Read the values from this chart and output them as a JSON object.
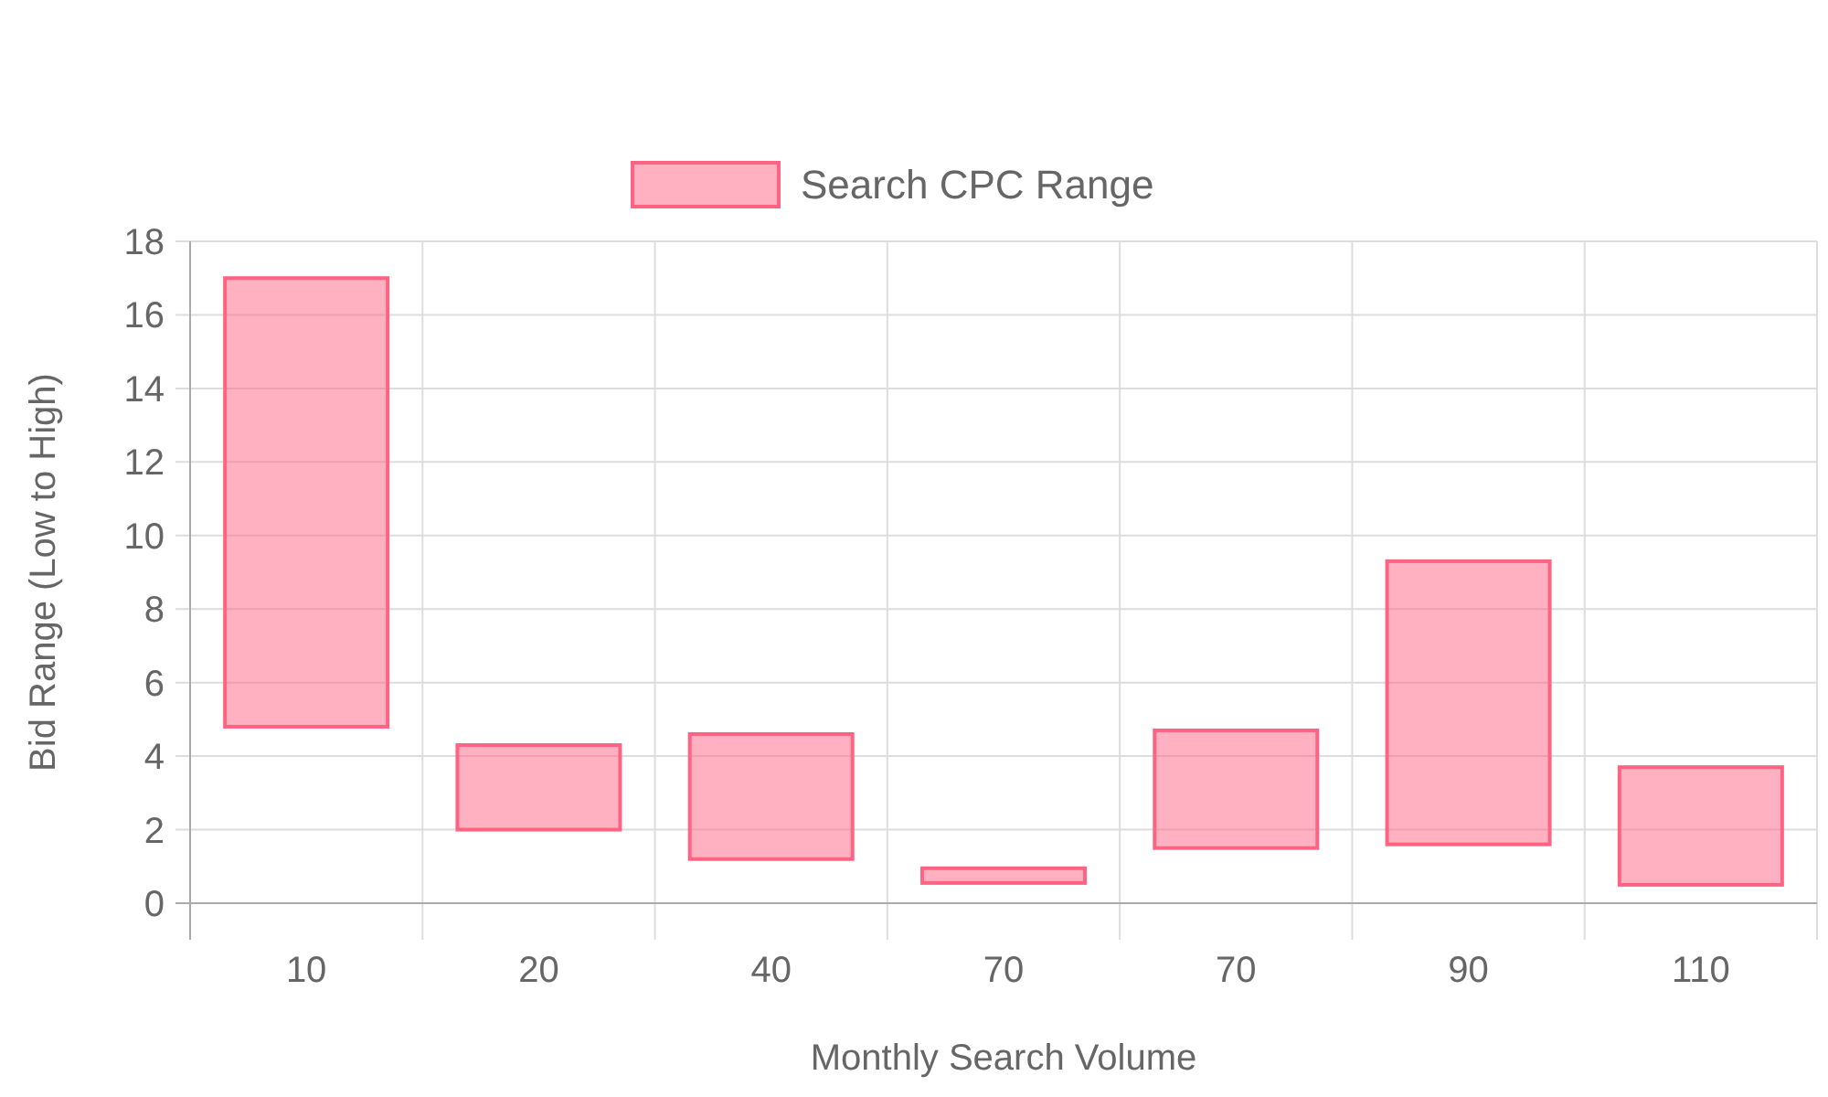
{
  "chart_data": {
    "type": "bar",
    "xlabel": "Monthly Search Volume",
    "ylabel": "Bid Range (Low to High)",
    "categories": [
      "10",
      "20",
      "40",
      "70",
      "70",
      "90",
      "110"
    ],
    "series": [
      {
        "name": "Search CPC Range",
        "color": "#ff6384",
        "values": [
          12.2,
          2.3,
          3.4,
          0.4,
          3.2,
          7.7,
          3.2
        ],
        "base": [
          4.8,
          2.0,
          1.2,
          0.55,
          1.5,
          1.6,
          0.5
        ]
      }
    ],
    "ylim": [
      0,
      18
    ],
    "yticks": [
      0,
      2,
      4,
      6,
      8,
      10,
      12,
      14,
      16,
      18
    ],
    "grid": true,
    "legend": "top"
  }
}
